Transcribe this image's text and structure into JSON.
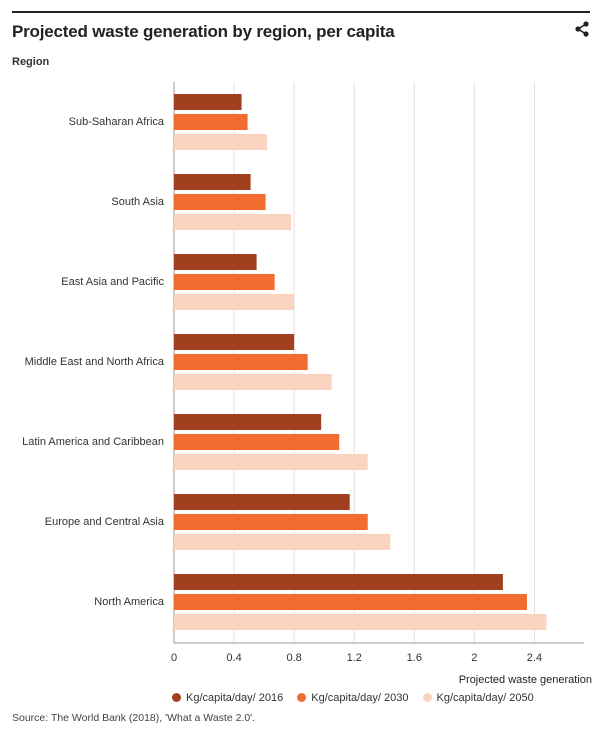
{
  "title": "Projected waste generation by region, per capita",
  "source": "Source: The World Bank (2018), 'What a Waste 2.0'.",
  "chart_data": {
    "type": "bar",
    "orientation": "horizontal",
    "title": "Projected waste generation by region, per capita",
    "ylabel": "Region",
    "xlabel": "Projected waste generation",
    "categories": [
      "Sub-Saharan Africa",
      "South Asia",
      "East Asia and Pacific",
      "Middle East and North Africa",
      "Latin America and Caribbean",
      "Europe and Central Asia",
      "North America"
    ],
    "series": [
      {
        "name": "Kg/capita/day/ 2016",
        "color": "#a0401f",
        "values": [
          0.45,
          0.51,
          0.55,
          0.8,
          0.98,
          1.17,
          2.19
        ]
      },
      {
        "name": "Kg/capita/day/ 2030",
        "color": "#f26b2f",
        "values": [
          0.49,
          0.61,
          0.67,
          0.89,
          1.1,
          1.29,
          2.35
        ]
      },
      {
        "name": "Kg/capita/day/ 2050",
        "color": "#fcd3c1",
        "values": [
          0.62,
          0.78,
          0.8,
          1.05,
          1.29,
          1.44,
          2.48
        ]
      }
    ],
    "xticks": [
      "0",
      "0.4",
      "0.8",
      "1.2",
      "1.6",
      "2",
      "2.4"
    ],
    "xlim": [
      0,
      2.73
    ],
    "grid": true,
    "legend_position": "bottom"
  }
}
